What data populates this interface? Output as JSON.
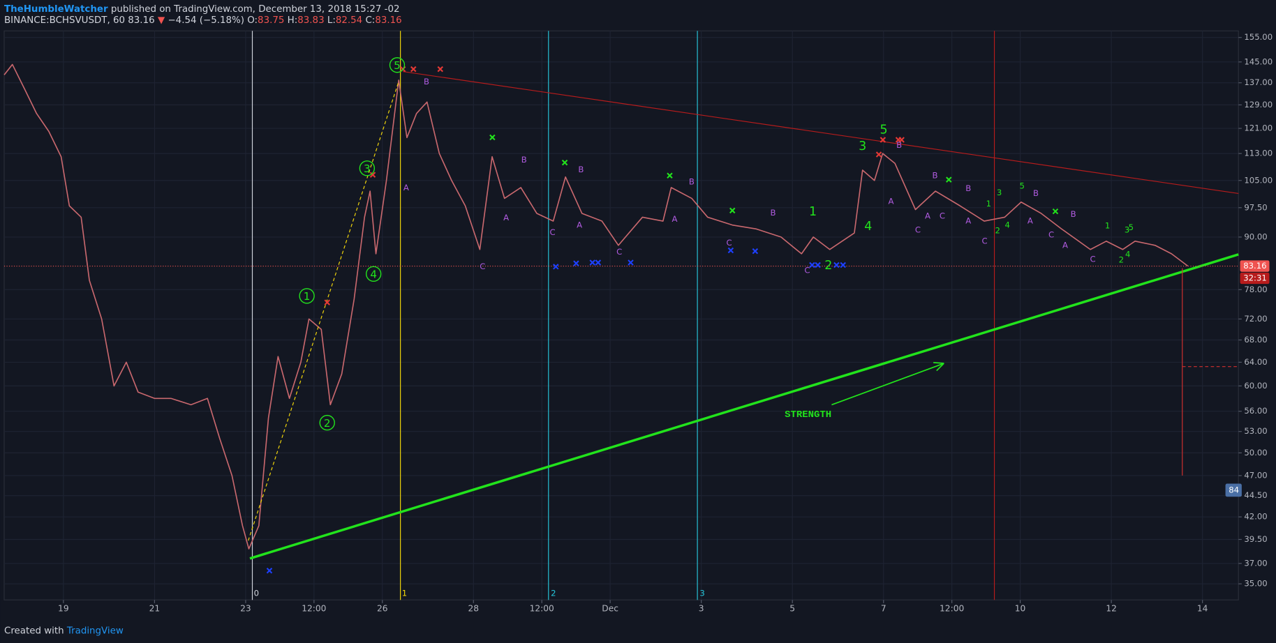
{
  "header": {
    "author": "TheHumbleWatcher",
    "published": "published on TradingView.com, December 13, 2018 15:27 -02",
    "symbol": "BINANCE:BCHSVUSDT, 60",
    "last": "83.16",
    "arrow": "▼",
    "change": "−4.54 (−5.18%)",
    "ohlc": [
      {
        "key": "O:",
        "value": "83.75"
      },
      {
        "key": "H:",
        "value": "83.83"
      },
      {
        "key": "L:",
        "value": "82.54"
      },
      {
        "key": "C:",
        "value": "83.16"
      }
    ]
  },
  "chart_data": {
    "type": "line",
    "log_scale": true,
    "grid": true,
    "color": "#c9686e",
    "x": [
      17.7,
      17.88,
      18.14,
      18.41,
      18.68,
      18.95,
      19.13,
      19.39,
      19.57,
      19.84,
      20.11,
      20.38,
      20.64,
      21,
      21.36,
      21.8,
      22.16,
      22.43,
      22.7,
      22.93,
      23.07,
      23.29,
      23.5,
      23.71,
      23.96,
      24.21,
      24.39,
      24.66,
      24.86,
      25.11,
      25.38,
      25.61,
      25.73,
      25.86,
      26.09,
      26.36,
      26.54,
      26.75,
      26.98,
      27.25,
      27.52,
      27.82,
      28.14,
      28.41,
      28.68,
      29.04,
      29.39,
      29.75,
      30.02,
      30.38,
      30.82,
      31.18,
      31.71,
      32.16,
      32.34,
      32.79,
      33.14,
      33.68,
      34.21,
      34.75,
      35.2,
      35.46,
      35.82,
      36.36,
      36.54,
      36.8,
      36.98,
      37.25,
      37.7,
      38.14,
      38.68,
      39.21,
      39.66,
      40.02,
      40.46,
      40.91,
      41.54,
      41.89,
      42.25,
      42.52,
      42.96,
      43.32,
      43.68
    ],
    "values": [
      140,
      144,
      135,
      126,
      120,
      112,
      98,
      95,
      80,
      72,
      60,
      64,
      59,
      58,
      58,
      57,
      58,
      52,
      47,
      41,
      38.5,
      41,
      55,
      65,
      58,
      64,
      72,
      70,
      57,
      62,
      76,
      95,
      102,
      86,
      105,
      138,
      118,
      126,
      130,
      113,
      105,
      98,
      87,
      112,
      100,
      103,
      96,
      94,
      106,
      96,
      94,
      88,
      95,
      94,
      103,
      100,
      95,
      93,
      92,
      90,
      86,
      90,
      87,
      91,
      108,
      105,
      113,
      110,
      97,
      102,
      98,
      94,
      95,
      99,
      96,
      92,
      87,
      89,
      87,
      89,
      88,
      86,
      83.16
    ],
    "xlim": [
      17.7,
      44.79
    ],
    "ylim": [
      33.5,
      157.8
    ],
    "xticks": [
      {
        "value": 19,
        "label": "19"
      },
      {
        "value": 21,
        "label": "21"
      },
      {
        "value": 23,
        "label": "23"
      },
      {
        "value": 24.5,
        "label": "12:00"
      },
      {
        "value": 26,
        "label": "26"
      },
      {
        "value": 28,
        "label": "28"
      },
      {
        "value": 29.5,
        "label": "12:00"
      },
      {
        "value": 31,
        "label": "Dec"
      },
      {
        "value": 33,
        "label": "3"
      },
      {
        "value": 35,
        "label": "5"
      },
      {
        "value": 37,
        "label": "7"
      },
      {
        "value": 38.5,
        "label": "12:00"
      },
      {
        "value": 40,
        "label": "10"
      },
      {
        "value": 42,
        "label": "12"
      },
      {
        "value": 44,
        "label": "14"
      }
    ],
    "yticks": [
      {
        "value": 155,
        "label": "155.00"
      },
      {
        "value": 145,
        "label": "145.00"
      },
      {
        "value": 137,
        "label": "137.00"
      },
      {
        "value": 129,
        "label": "129.00"
      },
      {
        "value": 121,
        "label": "121.00"
      },
      {
        "value": 113,
        "label": "113.00"
      },
      {
        "value": 105,
        "label": "105.00"
      },
      {
        "value": 97.5,
        "label": "97.50"
      },
      {
        "value": 90,
        "label": "90.00"
      },
      {
        "value": 78,
        "label": "78.00"
      },
      {
        "value": 72,
        "label": "72.00"
      },
      {
        "value": 68,
        "label": "68.00"
      },
      {
        "value": 64,
        "label": "64.00"
      },
      {
        "value": 60,
        "label": "60.00"
      },
      {
        "value": 56,
        "label": "56.00"
      },
      {
        "value": 53,
        "label": "53.00"
      },
      {
        "value": 50,
        "label": "50.00"
      },
      {
        "value": 47,
        "label": "47.00"
      },
      {
        "value": 44.5,
        "label": "44.50"
      },
      {
        "value": 42,
        "label": "42.00"
      },
      {
        "value": 39.5,
        "label": "39.50"
      },
      {
        "value": 37,
        "label": "37.00"
      },
      {
        "value": 35,
        "label": "35.00"
      }
    ],
    "current_price": {
      "value": 83.16,
      "label": "83.16"
    },
    "countdown": "32:31",
    "badge": "84",
    "annotations": {
      "strength": "STRENGTH",
      "impulse_circled": [
        "1",
        "2",
        "3",
        "4",
        "5"
      ],
      "impulse": [
        "1",
        "2",
        "3",
        "4",
        "5"
      ],
      "minor": [
        "3",
        "1",
        "2",
        "4",
        "5",
        "1",
        "3",
        "5",
        "4",
        "2"
      ],
      "corrective": [
        "A",
        "B",
        "A",
        "B",
        "C",
        "C",
        "A",
        "B",
        "C",
        "A",
        "B",
        "C",
        "B",
        "C",
        "A",
        "B",
        "A",
        "C",
        "B",
        "B",
        "C",
        "A",
        "C",
        "A",
        "B",
        "C",
        "B",
        "A",
        "C"
      ],
      "cycles": [
        "0",
        "1",
        "2",
        "3"
      ]
    }
  },
  "footer": {
    "created": "Created with",
    "brand": "TradingView"
  }
}
